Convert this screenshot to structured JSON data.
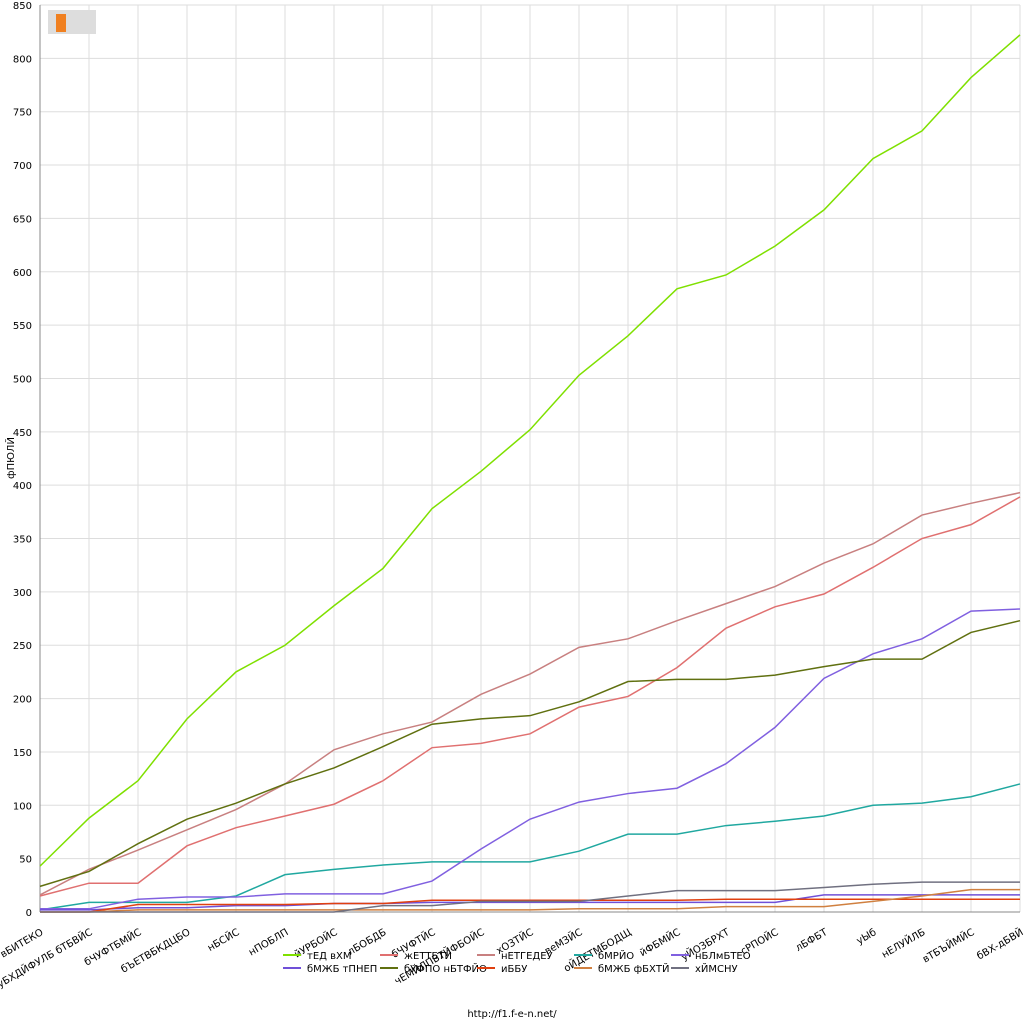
{
  "chart_data": {
    "type": "line",
    "y_label": "фПЮЛЙ",
    "footer": "http://f1.f-e-n.net/",
    "categories": [
      "вБИТЕКО",
      "уБХДЙФУЛБ бТБВЙС",
      "бЧУФТБМЙС",
      "бЪЕТВБКДЦБО",
      "нБСЙС",
      "нПОБЛП",
      "йУРБОЙС",
      "лБОБДБ",
      "бЧУФТЙС",
      "чЕМЙЛПВТЙФБОЙС",
      "хОЗТЙС",
      "веМЗЙС",
      "оЙДЕТМБОДЩ",
      "йФБМЙС",
      "уЙОЗБРХТ",
      "сРПОЙС",
      "лБФБТ",
      "уЫб",
      "нЕЛУЙЛБ",
      "вТБЪЙМЙС",
      "бВХ-дБВЙ"
    ],
    "ylim": [
      0,
      850
    ],
    "yticks": [
      0,
      50,
      100,
      150,
      200,
      250,
      300,
      350,
      400,
      450,
      500,
      550,
      600,
      650,
      700,
      750,
      800,
      850
    ],
    "grid": true,
    "series": [
      {
        "name": "тЕД вХМ",
        "color": "#7fe000",
        "values": [
          43,
          88,
          123,
          181,
          225,
          250,
          287,
          322,
          378,
          413,
          452,
          503,
          540,
          584,
          597,
          624,
          658,
          706,
          732,
          782,
          822
        ]
      },
      {
        "name": "жЕТТБТЙ",
        "color": "#e07070",
        "values": [
          15,
          27,
          27,
          62,
          79,
          90,
          101,
          123,
          154,
          158,
          167,
          192,
          202,
          229,
          266,
          286,
          298,
          323,
          350,
          363,
          389
        ]
      },
      {
        "name": "нЕТГЕДЕУ",
        "color": "#c88080",
        "values": [
          16,
          40,
          58,
          77,
          96,
          120,
          152,
          167,
          178,
          204,
          223,
          248,
          256,
          273,
          289,
          305,
          327,
          345,
          372,
          383,
          393
        ]
      },
      {
        "name": "бМРЙО",
        "color": "#20a8a0",
        "values": [
          2,
          9,
          9,
          9,
          15,
          35,
          40,
          44,
          47,
          47,
          47,
          57,
          73,
          73,
          81,
          85,
          90,
          100,
          102,
          108,
          120
        ]
      },
      {
        "name": "нБЛмБТЕО",
        "color": "#8060e0",
        "values": [
          3,
          3,
          12,
          14,
          14,
          17,
          17,
          17,
          29,
          59,
          87,
          103,
          111,
          116,
          139,
          173,
          219,
          242,
          256,
          282,
          284
        ]
      },
      {
        "name": "бМЖБ тПНЕП",
        "color": "#7050d8",
        "values": [
          2,
          2,
          4,
          4,
          6,
          6,
          8,
          8,
          9,
          9,
          9,
          9,
          9,
          9,
          9,
          9,
          16,
          16,
          16,
          16,
          16
        ]
      },
      {
        "name": "бУФПО нБТФЙО",
        "color": "#607010",
        "values": [
          24,
          38,
          64,
          87,
          102,
          120,
          135,
          155,
          176,
          181,
          184,
          197,
          216,
          218,
          218,
          222,
          230,
          237,
          237,
          262,
          273
        ]
      },
      {
        "name": "иББУ",
        "color": "#e04010",
        "values": [
          0,
          0,
          7,
          7,
          7,
          7,
          8,
          8,
          11,
          11,
          11,
          11,
          11,
          11,
          12,
          12,
          12,
          12,
          12,
          12,
          12
        ]
      },
      {
        "name": "бМЖБ фБХТЙ",
        "color": "#d08040",
        "values": [
          0,
          0,
          2,
          2,
          2,
          2,
          2,
          2,
          2,
          2,
          2,
          3,
          3,
          3,
          5,
          5,
          5,
          10,
          15,
          21,
          21
        ]
      },
      {
        "name": "хЙМСНУ",
        "color": "#707080",
        "values": [
          0,
          0,
          0,
          0,
          0,
          0,
          0,
          6,
          6,
          10,
          10,
          10,
          15,
          20,
          20,
          20,
          23,
          26,
          28,
          28,
          28
        ]
      }
    ]
  }
}
